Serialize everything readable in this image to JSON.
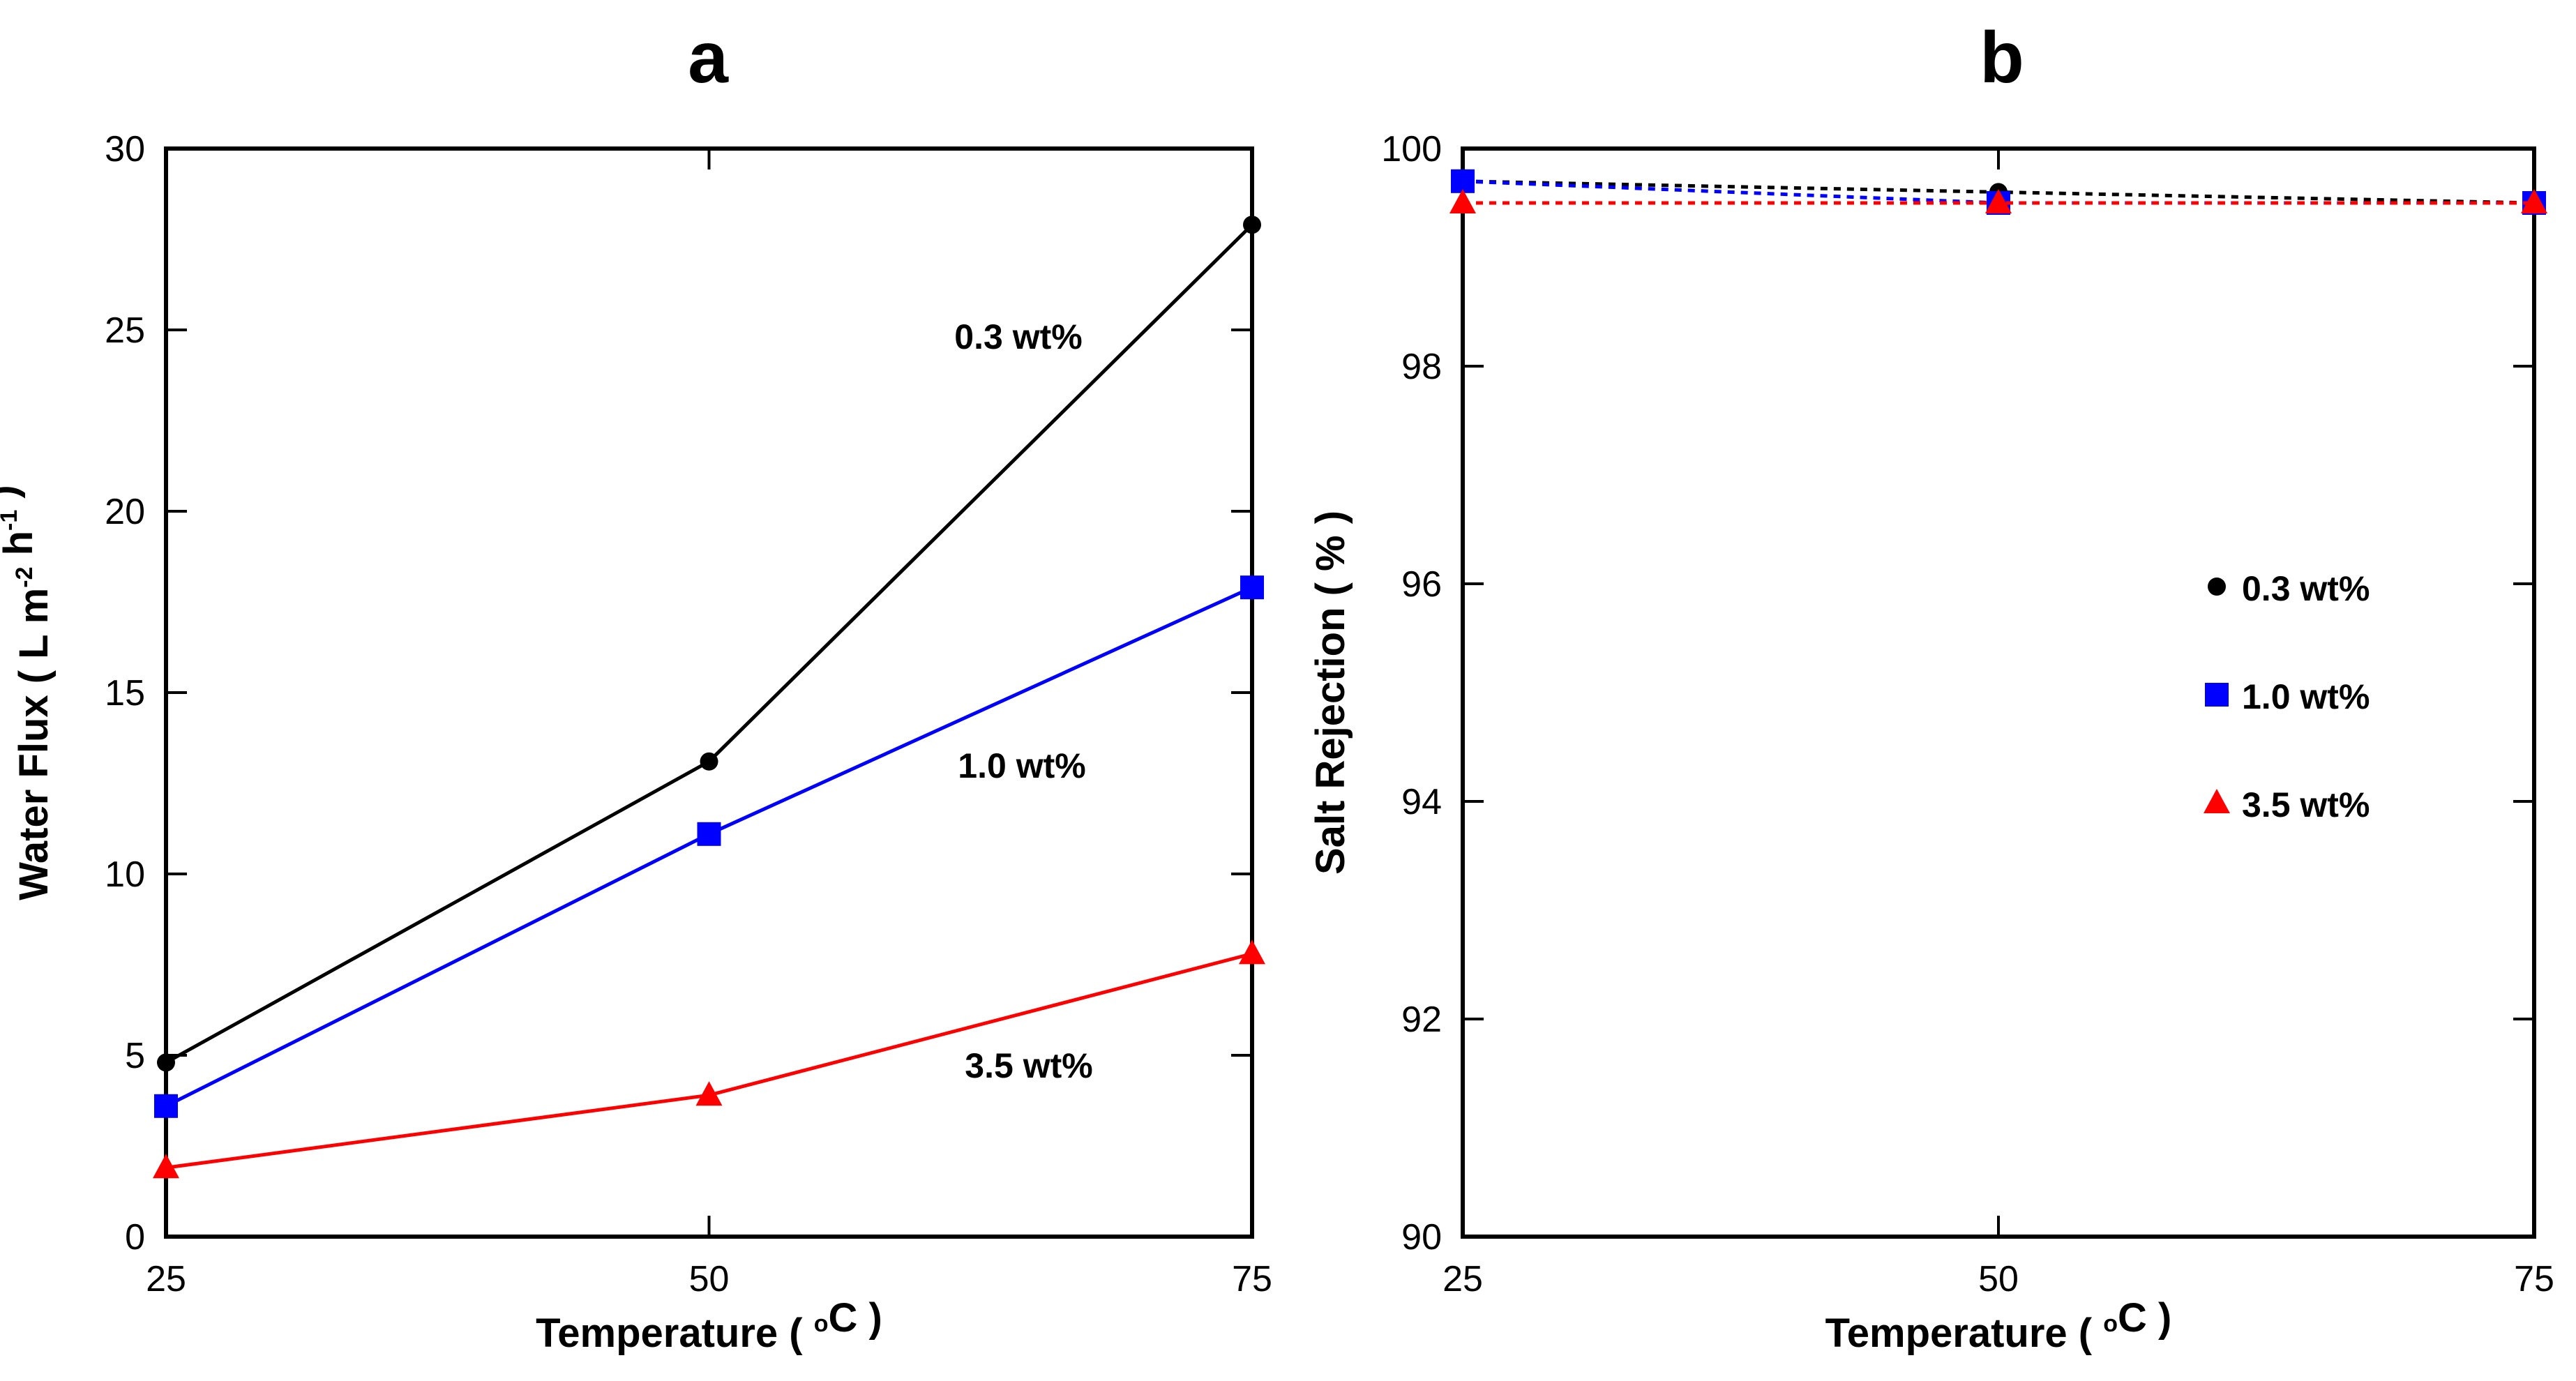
{
  "chart_data": [
    {
      "panel": "a",
      "type": "line",
      "title": "",
      "xlabel": "Temperature ( °C )",
      "ylabel": "Water Flux ( L m-2 h-1 )",
      "xlim": [
        25,
        75
      ],
      "ylim": [
        0,
        30
      ],
      "xticks": [
        25,
        50,
        75
      ],
      "yticks": [
        0,
        5,
        10,
        15,
        20,
        25,
        30
      ],
      "grid": false,
      "x": [
        25,
        50,
        75
      ],
      "series": [
        {
          "name": "0.3 wt%",
          "label": "0.3 wt%",
          "values": [
            4.8,
            13.1,
            27.9
          ],
          "color": "#000000",
          "marker": "circle",
          "line": "solid"
        },
        {
          "name": "1.0 wt%",
          "label": "1.0 wt%",
          "values": [
            3.6,
            11.1,
            17.9
          ],
          "color": "#0000ff",
          "marker": "square",
          "line": "solid"
        },
        {
          "name": "3.5 wt%",
          "label": "3.5 wt%",
          "values": [
            1.9,
            3.9,
            7.8
          ],
          "color": "#ff0000",
          "marker": "triangle",
          "line": "solid"
        }
      ]
    },
    {
      "panel": "b",
      "type": "line",
      "title": "",
      "xlabel": "Temperature ( °C )",
      "ylabel": "Salt Rejection ( % )",
      "xlim": [
        25,
        75
      ],
      "ylim": [
        90,
        100
      ],
      "xticks": [
        25,
        50,
        75
      ],
      "yticks": [
        90,
        92,
        94,
        96,
        98,
        100
      ],
      "grid": false,
      "legend": "right-center",
      "x": [
        25,
        50,
        75
      ],
      "series": [
        {
          "name": "0.3 wt%",
          "values": [
            99.7,
            99.6,
            99.5
          ],
          "color": "#000000",
          "marker": "circle",
          "line": "dotted"
        },
        {
          "name": "1.0 wt%",
          "values": [
            99.7,
            99.5,
            99.5
          ],
          "color": "#0000ff",
          "marker": "square",
          "line": "dotted"
        },
        {
          "name": "3.5 wt%",
          "values": [
            99.5,
            99.5,
            99.5
          ],
          "color": "#ff0000",
          "marker": "triangle",
          "line": "dotted"
        }
      ]
    }
  ]
}
